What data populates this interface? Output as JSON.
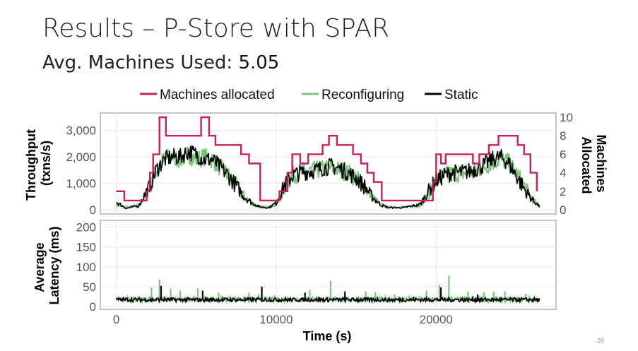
{
  "slide": {
    "title": "Results – P-Store with SPAR",
    "subtitle_label": "Avg. Machines Used: ",
    "subtitle_value": "5.05",
    "page_number": "26"
  },
  "chart_data": [
    {
      "type": "line",
      "panel": "throughput",
      "ylabel": "Throughput (txns/s)",
      "y2label": "Machines Allocated",
      "legend_position": "top",
      "ylim": [
        0,
        3500
      ],
      "yticks": [
        0,
        1000,
        2000,
        3000
      ],
      "ytick_labels": [
        "0",
        "1,000",
        "2,000",
        "3,000"
      ],
      "y2lim": [
        0,
        10
      ],
      "y2ticks": [
        0,
        2,
        4,
        6,
        8,
        10
      ],
      "xlim": [
        -1000,
        27500
      ],
      "colors": {
        "machines": "#cc1e5a",
        "reconfiguring": "#7dc57d",
        "static": "#000000"
      },
      "series": [
        {
          "name": "Machines allocated",
          "axis": "right",
          "step": true,
          "x": [
            0,
            500,
            1900,
            2100,
            2300,
            2700,
            3100,
            3400,
            3800,
            4400,
            4900,
            5300,
            5800,
            6200,
            6800,
            7400,
            7800,
            8300,
            9000,
            10200,
            10700,
            11000,
            11500,
            12000,
            12500,
            12900,
            13300,
            13800,
            14200,
            14800,
            15300,
            15700,
            16100,
            16600,
            17600,
            19800,
            20000,
            20300,
            20600,
            21000,
            21500,
            22000,
            22300,
            22700,
            23300,
            23900,
            24600,
            25100,
            25500,
            25900,
            26300
          ],
          "y": [
            2,
            1,
            2,
            4,
            6,
            10,
            8,
            8,
            8,
            8,
            8,
            10,
            8,
            7,
            7,
            7,
            6,
            5,
            1,
            2,
            4,
            6,
            5,
            6,
            6,
            7,
            8,
            7,
            7,
            6,
            5,
            4,
            3,
            1,
            1,
            3,
            6,
            5,
            6,
            6,
            6,
            6,
            5,
            6,
            7,
            8,
            8,
            7,
            6,
            4,
            2
          ]
        },
        {
          "name": "Reconfiguring",
          "axis": "left",
          "x": [
            0,
            600,
            1400,
            2000,
            2500,
            3000,
            3500,
            4000,
            4500,
            5000,
            5500,
            6000,
            6500,
            7000,
            7500,
            8000,
            8500,
            9000,
            9500,
            10000,
            10500,
            11000,
            11500,
            12000,
            12500,
            13000,
            13500,
            14000,
            14500,
            15000,
            15500,
            16000,
            16500,
            17000,
            18000,
            19000,
            19500,
            20000,
            20500,
            21000,
            21500,
            22000,
            22500,
            23000,
            23500,
            24000,
            24500,
            25000,
            25500,
            26000,
            26500
          ],
          "y": [
            200,
            100,
            150,
            700,
            1500,
            1900,
            2000,
            1900,
            2100,
            1900,
            2000,
            1900,
            1600,
            1300,
            900,
            500,
            250,
            100,
            100,
            200,
            800,
            1300,
            1400,
            1450,
            1500,
            1550,
            1600,
            1500,
            1400,
            1200,
            900,
            500,
            200,
            100,
            100,
            150,
            600,
            1100,
            1300,
            1350,
            1400,
            1400,
            1500,
            1600,
            1800,
            1900,
            1800,
            1400,
            900,
            400,
            100
          ]
        },
        {
          "name": "Static",
          "axis": "left",
          "x": [
            0,
            600,
            1400,
            2000,
            2500,
            3000,
            3500,
            4000,
            4500,
            5000,
            5500,
            6000,
            6500,
            7000,
            7500,
            8000,
            8500,
            9000,
            9500,
            10000,
            10500,
            11000,
            11500,
            12000,
            12500,
            13000,
            13500,
            14000,
            14500,
            15000,
            15500,
            16000,
            16500,
            17000,
            18000,
            19000,
            19500,
            20000,
            20500,
            21000,
            21500,
            22000,
            22500,
            23000,
            23500,
            24000,
            24500,
            25000,
            25500,
            26000,
            26500
          ],
          "y": [
            300,
            50,
            150,
            800,
            1500,
            1900,
            2000,
            2000,
            2200,
            2100,
            1900,
            1900,
            1600,
            1300,
            900,
            500,
            250,
            100,
            80,
            250,
            900,
            1300,
            1400,
            1450,
            1500,
            1600,
            1650,
            1550,
            1400,
            1200,
            900,
            500,
            200,
            80,
            80,
            200,
            700,
            1100,
            1300,
            1400,
            1400,
            1450,
            1550,
            1700,
            1900,
            2000,
            1800,
            1300,
            800,
            400,
            100
          ]
        }
      ]
    },
    {
      "type": "line",
      "panel": "latency",
      "xlabel": "Time (s)",
      "ylabel": "Average Latency (ms)",
      "ylim": [
        0,
        210
      ],
      "yticks": [
        0,
        50,
        100,
        150,
        200
      ],
      "xlim": [
        -1000,
        27500
      ],
      "xticks": [
        0,
        10000,
        20000
      ],
      "series": [
        {
          "name": "Reconfiguring",
          "baseline": 18,
          "spikes_x": [
            2200,
            2700,
            3400,
            4000,
            5100,
            6400,
            8300,
            8900,
            12100,
            13400,
            15600,
            16200,
            17400,
            19400,
            20200,
            20800,
            22000,
            23000,
            23600,
            24300,
            25600
          ],
          "spikes_y": [
            48,
            68,
            45,
            40,
            45,
            35,
            35,
            32,
            42,
            65,
            38,
            36,
            30,
            40,
            55,
            78,
            38,
            36,
            38,
            38,
            32
          ]
        },
        {
          "name": "Static",
          "baseline": 17,
          "spikes_x": [
            2800,
            5400,
            9100,
            11800,
            14300,
            20300,
            22600
          ],
          "spikes_y": [
            52,
            40,
            50,
            35,
            38,
            48,
            30
          ]
        }
      ]
    }
  ]
}
